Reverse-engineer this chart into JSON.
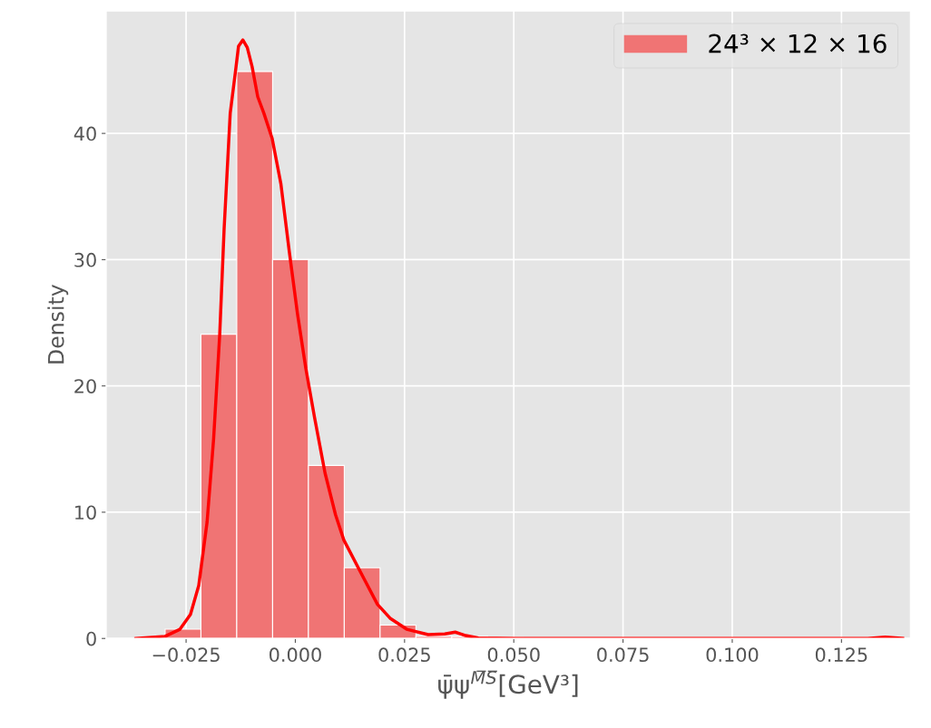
{
  "chart_data": {
    "type": "histogram",
    "xlabel": "ψ̄ψ$^{M̅S̅}$[GeV³]",
    "ylabel": "Density",
    "bins": [
      -0.0298,
      -0.0216,
      -0.0134,
      -0.0052,
      0.003,
      0.0112,
      0.0194,
      0.0276,
      0.0358,
      0.044,
      0.0522,
      0.0604,
      0.0686,
      0.0768,
      0.085,
      0.0932,
      0.1014,
      0.1096,
      0.1178,
      0.126,
      0.1342
    ],
    "series": [
      {
        "name": "24³ × 12 × 16",
        "color": "#f07474",
        "values": [
          0.73,
          24.1,
          44.9,
          30.0,
          13.7,
          5.6,
          1.06,
          0.17,
          0.15,
          0.07,
          0,
          0,
          0,
          0,
          0,
          0,
          0,
          0,
          0,
          null
        ]
      },
      {
        "type": "line",
        "color": "#ff0000",
        "x": [
          -0.0365,
          -0.0298,
          -0.0264,
          -0.024,
          -0.0221,
          -0.0202,
          -0.0187,
          -0.0173,
          -0.0163,
          -0.0149,
          -0.0137,
          -0.013,
          -0.012,
          -0.011,
          -0.0099,
          -0.0086,
          -0.0072,
          -0.0053,
          -0.0033,
          -0.0014,
          0.0005,
          0.0024,
          0.0044,
          0.0068,
          0.0092,
          0.0111,
          0.015,
          0.0188,
          0.0217,
          0.0255,
          0.0304,
          0.0342,
          0.0366,
          0.039,
          0.0419,
          0.0506,
          0.125,
          0.131,
          0.135,
          0.139
        ],
        "values": [
          0,
          0.17,
          0.73,
          1.9,
          4.2,
          9.2,
          15.8,
          24.1,
          32.4,
          41.6,
          44.9,
          46.9,
          47.4,
          46.8,
          45.3,
          42.9,
          41.6,
          39.6,
          36.0,
          30.7,
          25.7,
          21.4,
          17.5,
          13.1,
          9.8,
          7.8,
          5.2,
          2.7,
          1.6,
          0.73,
          0.3,
          0.36,
          0.5,
          0.23,
          0.03,
          0,
          0,
          0,
          0.1,
          0
        ]
      }
    ],
    "xlim": [
      -0.0433,
      0.1408
    ],
    "ylim": [
      0,
      49.7
    ],
    "xticks": [
      {
        "value": -0.025,
        "label": "−0.025"
      },
      {
        "value": 0.0,
        "label": "0.000"
      },
      {
        "value": 0.025,
        "label": "0.025"
      },
      {
        "value": 0.05,
        "label": "0.050"
      },
      {
        "value": 0.075,
        "label": "0.075"
      },
      {
        "value": 0.1,
        "label": "0.100"
      },
      {
        "value": 0.125,
        "label": "0.125"
      }
    ],
    "yticks": [
      0,
      10,
      20,
      30,
      40
    ],
    "grid": true,
    "legend": "top right"
  }
}
